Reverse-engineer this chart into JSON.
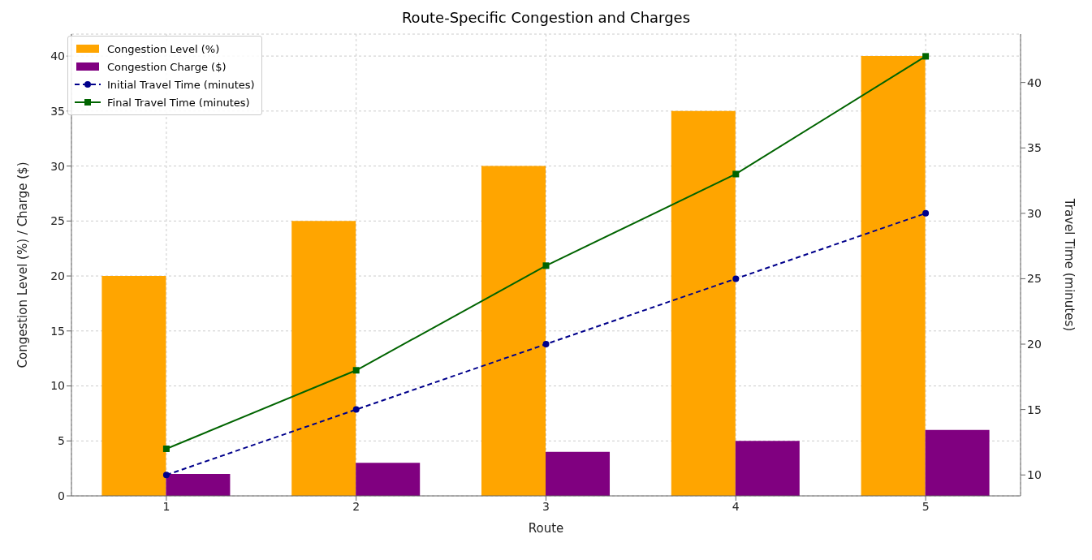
{
  "chart_data": {
    "type": "bar",
    "title": "Route-Specific Congestion and Charges",
    "xlabel": "Route",
    "ylabel": "Congestion Level (%) / Charge ($)",
    "y2label": "Travel Time (minutes)",
    "categories": [
      "1",
      "2",
      "3",
      "4",
      "5"
    ],
    "series": [
      {
        "name": "Congestion Level (%)",
        "color": "#ffa500",
        "values": [
          20,
          25,
          30,
          35,
          40
        ]
      },
      {
        "name": "Congestion Charge ($)",
        "color": "#800080",
        "values": [
          2,
          3,
          4,
          5,
          6
        ]
      },
      {
        "name": "Initial Travel Time (minutes)",
        "type": "line",
        "axis": "y2",
        "color": "#00008b",
        "marker": "circle",
        "line_style": "dashed",
        "values": [
          10,
          15,
          20,
          25,
          30
        ]
      },
      {
        "name": "Final Travel Time (minutes)",
        "type": "line",
        "axis": "y2",
        "color": "#006400",
        "marker": "square",
        "line_style": "solid",
        "values": [
          12,
          18,
          26,
          33,
          42
        ]
      }
    ],
    "ylim": [
      0,
      42
    ],
    "yticks": [
      0,
      5,
      10,
      15,
      20,
      25,
      30,
      35,
      40
    ],
    "y2lim": [
      8.4,
      43.7
    ],
    "y2ticks": [
      10,
      15,
      20,
      25,
      30,
      35,
      40
    ],
    "grid": true,
    "legend": "top left"
  }
}
